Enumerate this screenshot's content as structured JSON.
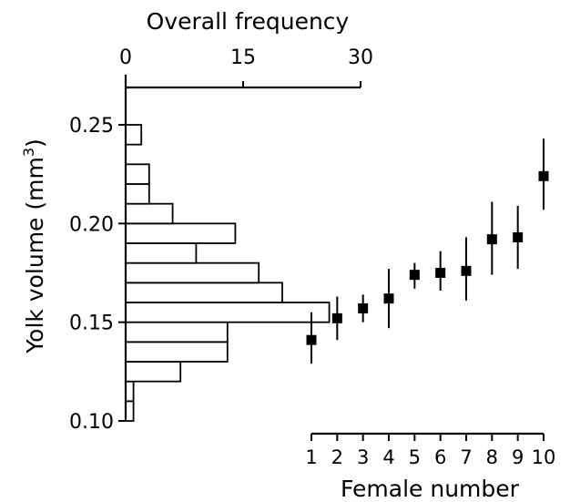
{
  "chart_data": [
    {
      "type": "bar",
      "orientation": "horizontal",
      "title": "Overall frequency",
      "xlabel": "Overall frequency",
      "ylabel": "Yolk volume (mm",
      "ylabel_sup": "3",
      "ylabel_close": ")",
      "xlim": [
        0,
        30
      ],
      "xticks": [
        0,
        15,
        30
      ],
      "ylim": [
        0.1,
        0.27
      ],
      "yticks": [
        "0.10",
        "0.15",
        "0.20",
        "0.25"
      ],
      "ytick_values": [
        0.1,
        0.15,
        0.2,
        0.25
      ],
      "bin_width": 0.01,
      "bins": [
        {
          "y": 0.105,
          "value": 1
        },
        {
          "y": 0.115,
          "value": 1
        },
        {
          "y": 0.125,
          "value": 7
        },
        {
          "y": 0.135,
          "value": 13
        },
        {
          "y": 0.145,
          "value": 13
        },
        {
          "y": 0.155,
          "value": 26
        },
        {
          "y": 0.165,
          "value": 20
        },
        {
          "y": 0.175,
          "value": 17
        },
        {
          "y": 0.185,
          "value": 9
        },
        {
          "y": 0.195,
          "value": 14
        },
        {
          "y": 0.205,
          "value": 6
        },
        {
          "y": 0.215,
          "value": 3
        },
        {
          "y": 0.225,
          "value": 3
        },
        {
          "y": 0.235,
          "value": 0
        },
        {
          "y": 0.245,
          "value": 2
        }
      ]
    },
    {
      "type": "scatter",
      "error_bars": true,
      "xlabel": "Female number",
      "xticks": [
        "1",
        "2",
        "3",
        "4",
        "5",
        "6",
        "7",
        "8",
        "9",
        "10"
      ],
      "ylim": [
        0.1,
        0.27
      ],
      "points": [
        {
          "x": 1,
          "y": 0.141,
          "low": 0.129,
          "high": 0.155
        },
        {
          "x": 2,
          "y": 0.152,
          "low": 0.141,
          "high": 0.163
        },
        {
          "x": 3,
          "y": 0.157,
          "low": 0.15,
          "high": 0.164
        },
        {
          "x": 4,
          "y": 0.162,
          "low": 0.147,
          "high": 0.177
        },
        {
          "x": 5,
          "y": 0.174,
          "low": 0.167,
          "high": 0.18
        },
        {
          "x": 6,
          "y": 0.175,
          "low": 0.166,
          "high": 0.186
        },
        {
          "x": 7,
          "y": 0.176,
          "low": 0.161,
          "high": 0.193
        },
        {
          "x": 8,
          "y": 0.192,
          "low": 0.174,
          "high": 0.211
        },
        {
          "x": 9,
          "y": 0.193,
          "low": 0.177,
          "high": 0.209
        },
        {
          "x": 10,
          "y": 0.224,
          "low": 0.207,
          "high": 0.243
        }
      ]
    }
  ]
}
